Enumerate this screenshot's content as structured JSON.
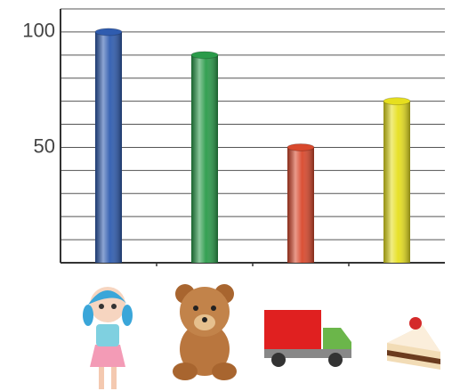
{
  "chart_data": {
    "type": "bar",
    "categories": [
      null,
      null,
      null,
      null
    ],
    "values": [
      100,
      90,
      50,
      70
    ],
    "colors": [
      "#2f5caf",
      "#2a9b4a",
      "#d8482c",
      "#e6df1e"
    ],
    "ylim": [
      0,
      110
    ],
    "yticks": [
      50,
      100
    ],
    "ygrid": [
      10,
      20,
      30,
      40,
      50,
      60,
      70,
      80,
      90,
      100,
      110
    ],
    "grid": true
  }
}
